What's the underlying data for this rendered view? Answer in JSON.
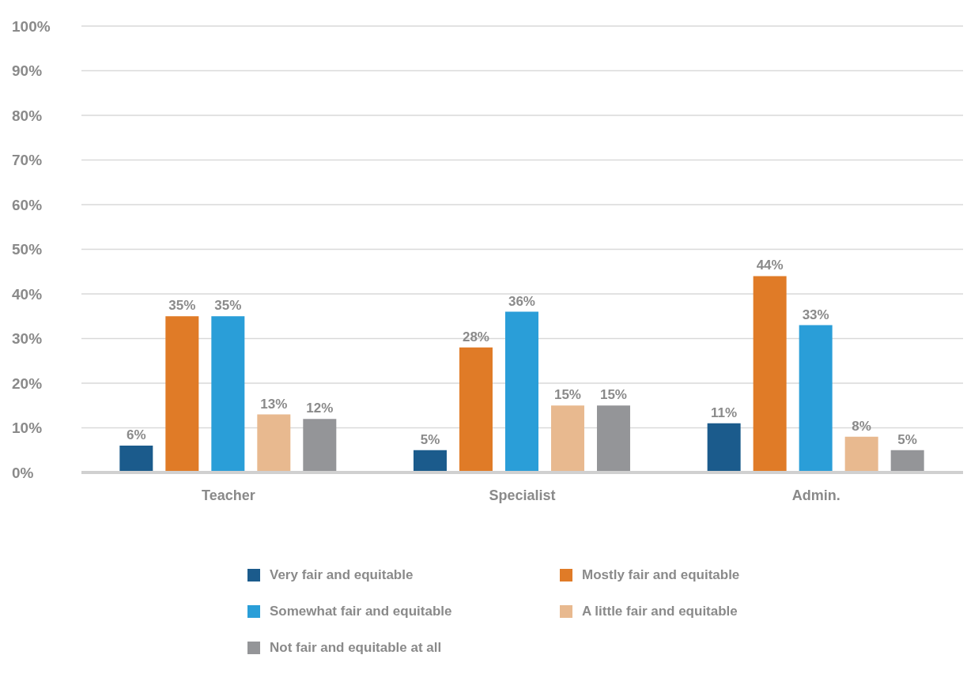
{
  "chart_data": {
    "type": "bar",
    "categories": [
      "Teacher",
      "Specialist",
      "Admin."
    ],
    "series": [
      {
        "name": "Very fair and equitable",
        "color": "#1b5b8c",
        "values": [
          6,
          5,
          11
        ],
        "value_labels": [
          "6%",
          "5%",
          "11%"
        ]
      },
      {
        "name": "Mostly fair and equitable",
        "color": "#e07b27",
        "values": [
          35,
          28,
          44
        ],
        "value_labels": [
          "35%",
          "28%",
          "44%"
        ]
      },
      {
        "name": "Somewhat fair and equitable",
        "color": "#2a9ed8",
        "values": [
          35,
          36,
          33
        ],
        "value_labels": [
          "35%",
          "36%",
          "33%"
        ]
      },
      {
        "name": "A little fair and equitable",
        "color": "#e8b98f",
        "values": [
          13,
          15,
          8
        ],
        "value_labels": [
          "13%",
          "15%",
          "8%"
        ]
      },
      {
        "name": "Not fair and equitable at all",
        "color": "#949598",
        "values": [
          12,
          15,
          5
        ],
        "value_labels": [
          "12%",
          "15%",
          "5%"
        ]
      }
    ],
    "ylim": [
      0,
      100
    ],
    "yticks": [
      {
        "value": 0,
        "label": "0%"
      },
      {
        "value": 10,
        "label": "10%"
      },
      {
        "value": 20,
        "label": "20%"
      },
      {
        "value": 30,
        "label": "30%"
      },
      {
        "value": 40,
        "label": "40%"
      },
      {
        "value": 50,
        "label": "50%"
      },
      {
        "value": 60,
        "label": "60%"
      },
      {
        "value": 70,
        "label": "70%"
      },
      {
        "value": 80,
        "label": "80%"
      },
      {
        "value": 90,
        "label": "90%"
      },
      {
        "value": 100,
        "label": "100%"
      }
    ],
    "grid": "y",
    "legend": "bottom"
  }
}
